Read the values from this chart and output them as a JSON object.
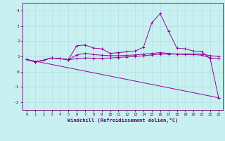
{
  "xlabel": "Windchill (Refroidissement éolien,°C)",
  "background_color": "#c8f0f0",
  "line_color": "#990099",
  "xlim": [
    -0.5,
    23.5
  ],
  "ylim": [
    -2.5,
    4.5
  ],
  "yticks": [
    -2,
    -1,
    0,
    1,
    2,
    3,
    4
  ],
  "xticks": [
    0,
    1,
    2,
    3,
    4,
    5,
    6,
    7,
    8,
    9,
    10,
    11,
    12,
    13,
    14,
    15,
    16,
    17,
    18,
    19,
    20,
    21,
    22,
    23
  ],
  "series": {
    "line1_x": [
      0,
      1,
      2,
      3,
      4,
      5,
      6,
      7,
      8,
      9,
      10,
      11,
      12,
      13,
      14,
      15,
      16,
      17,
      18,
      19,
      20,
      21,
      22,
      23
    ],
    "line1_y": [
      0.8,
      0.65,
      0.75,
      0.9,
      0.85,
      0.8,
      1.7,
      1.75,
      1.55,
      1.5,
      1.2,
      1.25,
      1.3,
      1.35,
      1.6,
      3.2,
      3.8,
      2.65,
      1.55,
      1.5,
      1.35,
      1.3,
      0.85,
      -1.7
    ],
    "line2_x": [
      0,
      1,
      2,
      3,
      4,
      5,
      6,
      7,
      8,
      9,
      10,
      11,
      12,
      13,
      14,
      15,
      16,
      17,
      18,
      19,
      20,
      21,
      22,
      23
    ],
    "line2_y": [
      0.8,
      0.65,
      0.75,
      0.9,
      0.85,
      0.78,
      1.1,
      1.2,
      1.12,
      1.08,
      1.05,
      1.05,
      1.07,
      1.1,
      1.15,
      1.2,
      1.25,
      1.2,
      1.15,
      1.12,
      1.12,
      1.08,
      0.9,
      0.85
    ],
    "line3_x": [
      0,
      1,
      2,
      3,
      4,
      5,
      6,
      7,
      8,
      9,
      10,
      11,
      12,
      13,
      14,
      15,
      16,
      17,
      18,
      19,
      20,
      21,
      22,
      23
    ],
    "line3_y": [
      0.8,
      0.65,
      0.75,
      0.9,
      0.85,
      0.78,
      0.85,
      0.9,
      0.88,
      0.87,
      0.9,
      0.93,
      0.97,
      1.0,
      1.05,
      1.1,
      1.15,
      1.15,
      1.15,
      1.15,
      1.15,
      1.15,
      1.05,
      1.0
    ],
    "line4_x": [
      0,
      23
    ],
    "line4_y": [
      0.8,
      -1.7
    ]
  }
}
